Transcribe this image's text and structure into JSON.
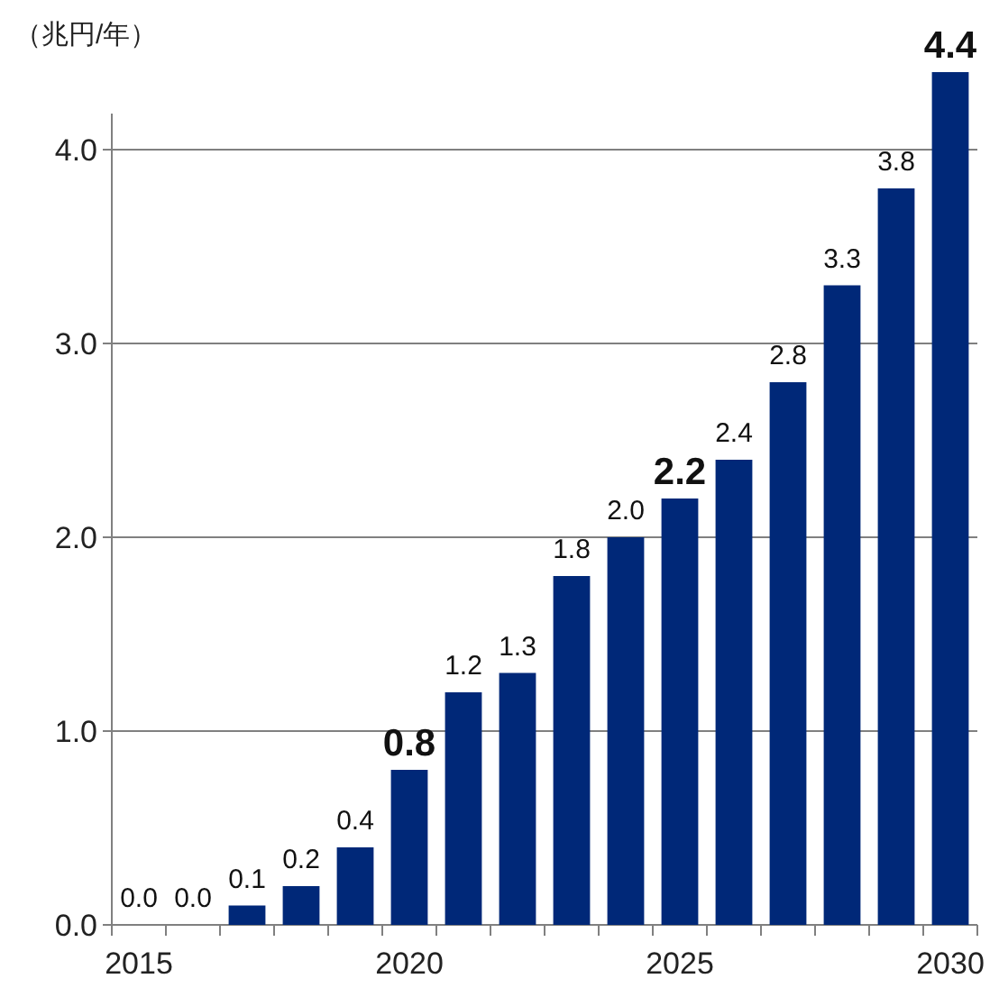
{
  "chart_data": {
    "type": "bar",
    "ylabel": "（兆円/年）",
    "categories": [
      "2015",
      null,
      null,
      null,
      null,
      "2020",
      null,
      null,
      null,
      null,
      "2025",
      null,
      null,
      null,
      null,
      "2030"
    ],
    "values": [
      0.0,
      0.0,
      0.1,
      0.2,
      0.4,
      0.8,
      1.2,
      1.3,
      1.8,
      2.0,
      2.2,
      2.4,
      2.8,
      3.3,
      3.8,
      4.4
    ],
    "value_labels": [
      "0.0",
      "0.0",
      "0.1",
      "0.2",
      "0.4",
      "**0.8**",
      "1.2",
      "1.3",
      "1.8",
      "2.0",
      "**2.2**",
      "2.4",
      "2.8",
      "3.3",
      "3.8",
      "**4.4**"
    ],
    "color": "#002878",
    "ylim": [
      0,
      4.4
    ],
    "yticks": [
      {
        "value": 0,
        "label": "0.0"
      },
      {
        "value": 1,
        "label": "1.0"
      },
      {
        "value": 2,
        "label": "2.0"
      },
      {
        "value": 3,
        "label": "3.0"
      },
      {
        "value": 4,
        "label": "4.0"
      }
    ],
    "grid": "y"
  }
}
